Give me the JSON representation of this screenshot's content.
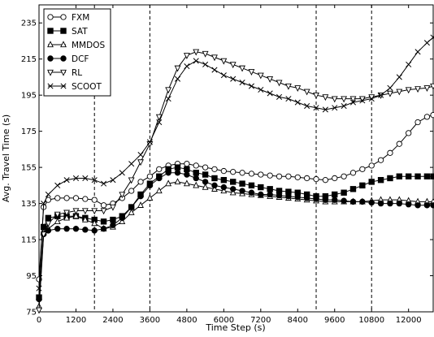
{
  "chart_data": {
    "type": "line",
    "title": "",
    "xlabel": "Time Step (s)",
    "ylabel": "Avg. Travel Time (s)",
    "xlim": [
      0,
      12800
    ],
    "ylim": [
      75,
      245
    ],
    "xticks": [
      0,
      1200,
      2400,
      3600,
      4800,
      6000,
      7200,
      8400,
      9600,
      10800,
      12000
    ],
    "yticks": [
      75,
      95,
      115,
      135,
      155,
      175,
      195,
      215,
      235
    ],
    "grid": false,
    "legend_position": "top-left",
    "vertical_lines": [
      1800,
      3600,
      9000,
      10800
    ],
    "x": [
      0,
      150,
      300,
      600,
      900,
      1200,
      1500,
      1800,
      2100,
      2400,
      2700,
      3000,
      3300,
      3600,
      3900,
      4200,
      4500,
      4800,
      5100,
      5400,
      5700,
      6000,
      6300,
      6600,
      6900,
      7200,
      7500,
      7800,
      8100,
      8400,
      8700,
      9000,
      9300,
      9600,
      9900,
      10200,
      10500,
      10800,
      11100,
      11400,
      11700,
      12000,
      12300,
      12600,
      12800
    ],
    "series": [
      {
        "name": "FXM",
        "marker": "circle-open",
        "values": [
          93,
          133,
          137,
          138,
          138,
          138,
          137.5,
          137,
          134,
          135,
          138,
          142,
          147,
          150,
          154,
          156,
          157,
          157,
          156,
          155,
          154,
          153,
          152.5,
          152,
          151.5,
          151,
          150.5,
          150,
          150,
          149.5,
          149,
          148.5,
          148,
          149,
          150,
          152,
          154,
          156,
          159,
          163,
          168,
          174,
          180,
          183,
          184
        ]
      },
      {
        "name": "SAT",
        "marker": "square-filled",
        "values": [
          83,
          122,
          127,
          128,
          128,
          128,
          127,
          126,
          125,
          126,
          128,
          133,
          140,
          146,
          150,
          154,
          155,
          154,
          152,
          151,
          149,
          148,
          147,
          146,
          145,
          144,
          143,
          142,
          141.5,
          141,
          140,
          139,
          139,
          140,
          141,
          143,
          145,
          147,
          148,
          149,
          150,
          150,
          150,
          150,
          150
        ]
      },
      {
        "name": "MMDOS",
        "marker": "triangle-open",
        "values": [
          78,
          119,
          121,
          125,
          127,
          128,
          126,
          124,
          121,
          122,
          125,
          130,
          134,
          138,
          142,
          146,
          147,
          146,
          145,
          144,
          143,
          142,
          141,
          140.5,
          140,
          139.5,
          139,
          138.5,
          138,
          137.5,
          137,
          136.5,
          136,
          136,
          136,
          136,
          136,
          136.5,
          137,
          137,
          137,
          136.5,
          136,
          136,
          136
        ]
      },
      {
        "name": "DCF",
        "marker": "circle-filled",
        "values": [
          82,
          118,
          120,
          121,
          121,
          121,
          120.5,
          120,
          121,
          123,
          127,
          133,
          139,
          145,
          149,
          152,
          152,
          151,
          149,
          147,
          145,
          144,
          143,
          142,
          141,
          140,
          140,
          139.5,
          139,
          138.5,
          138,
          137.5,
          137,
          137,
          136.5,
          136,
          136,
          135.5,
          135,
          135,
          135,
          134.5,
          134,
          134,
          134
        ]
      },
      {
        "name": "RL",
        "marker": "triangle-down-open",
        "values": [
          76,
          118,
          124,
          129,
          130,
          131,
          131,
          131,
          131,
          133,
          140,
          148,
          158,
          168,
          183,
          198,
          210,
          217,
          219,
          218,
          216,
          214,
          212,
          210,
          208,
          206,
          204,
          202,
          200,
          199,
          197,
          195,
          194,
          193,
          193,
          193,
          193,
          194,
          195,
          196,
          197,
          198,
          198.5,
          199,
          200
        ]
      },
      {
        "name": "SCOOT",
        "marker": "x",
        "values": [
          88,
          135,
          140,
          145,
          148,
          149,
          149,
          148,
          146,
          148,
          152,
          157,
          162,
          169,
          180,
          193,
          204,
          211,
          214,
          212,
          209,
          206,
          204,
          202,
          200,
          198,
          196,
          194,
          193,
          191,
          189,
          188,
          187,
          188,
          189,
          191,
          192,
          193,
          195,
          199,
          205,
          212,
          219,
          224,
          227
        ]
      }
    ]
  },
  "colors": {
    "line": "#000000",
    "background": "#ffffff"
  }
}
